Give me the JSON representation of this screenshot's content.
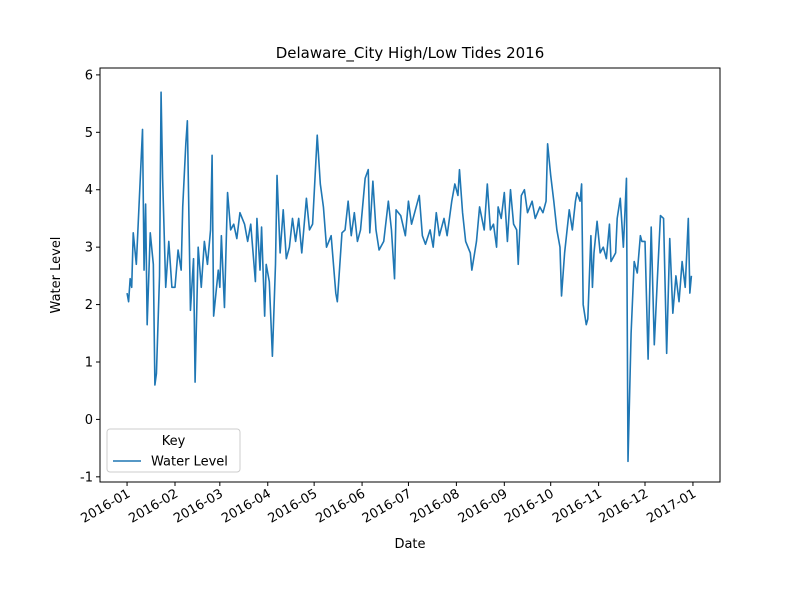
{
  "chart_data": {
    "type": "line",
    "title": "Delaware_City High/Low Tides 2016",
    "x_label": "Date",
    "y_label": "Water Level",
    "xlim": [
      -17.5,
      383.5
    ],
    "ylim": [
      -1.09,
      6.12
    ],
    "xticks": [
      {
        "value": 0,
        "label": "2016-01"
      },
      {
        "value": 31,
        "label": "2016-02"
      },
      {
        "value": 60,
        "label": "2016-03"
      },
      {
        "value": 91,
        "label": "2016-04"
      },
      {
        "value": 121,
        "label": "2016-05"
      },
      {
        "value": 152,
        "label": "2016-06"
      },
      {
        "value": 182,
        "label": "2016-07"
      },
      {
        "value": 213,
        "label": "2016-08"
      },
      {
        "value": 244,
        "label": "2016-09"
      },
      {
        "value": 274,
        "label": "2016-10"
      },
      {
        "value": 305,
        "label": "2016-11"
      },
      {
        "value": 335,
        "label": "2016-12"
      },
      {
        "value": 366,
        "label": "2017-01"
      }
    ],
    "yticks": [
      -1,
      0,
      1,
      2,
      3,
      4,
      5,
      6
    ],
    "grid": false,
    "legend_title": "Key",
    "legend_loc": "lower left",
    "x": [
      0,
      1,
      2,
      3,
      4,
      6,
      10,
      11,
      12,
      13,
      15,
      17,
      18,
      19,
      21,
      22,
      23,
      25,
      27,
      29,
      31,
      33,
      35,
      36,
      38,
      39,
      41,
      43,
      44,
      46,
      48,
      50,
      52,
      54,
      55,
      56,
      59,
      60,
      61,
      63,
      65,
      67,
      69,
      71,
      73,
      76,
      78,
      80,
      83,
      84,
      86,
      87,
      89,
      90,
      92,
      94,
      96,
      97,
      99,
      101,
      103,
      105,
      107,
      109,
      111,
      113,
      116,
      118,
      120,
      123,
      125,
      127,
      129,
      132,
      135,
      136,
      139,
      141,
      143,
      145,
      147,
      149,
      151,
      154,
      156,
      157,
      159,
      161,
      163,
      166,
      169,
      171,
      173,
      174,
      177,
      180,
      182,
      184,
      187,
      189,
      191,
      193,
      196,
      198,
      200,
      202,
      205,
      207,
      210,
      212,
      214,
      215,
      217,
      219,
      222,
      223,
      226,
      228,
      231,
      233,
      235,
      237,
      239,
      240,
      242,
      244,
      246,
      248,
      250,
      252,
      253,
      255,
      257,
      259,
      262,
      264,
      267,
      269,
      271,
      272,
      274,
      276,
      278,
      280,
      281,
      283,
      286,
      288,
      290,
      291,
      293,
      294,
      295,
      297,
      298,
      300,
      301,
      302,
      304,
      306,
      308,
      310,
      312,
      313,
      316,
      317,
      319,
      321,
      323,
      324,
      326,
      328,
      330,
      332,
      333,
      335,
      337,
      339,
      341,
      343,
      345,
      347,
      349,
      351,
      353,
      355,
      357,
      359,
      361,
      363,
      364,
      365
    ],
    "series": [
      {
        "name": "Water Level",
        "color": "#1f77b4",
        "values": [
          2.2,
          2.05,
          2.45,
          2.3,
          3.25,
          2.7,
          5.05,
          2.6,
          3.75,
          1.65,
          3.25,
          2.7,
          0.6,
          0.8,
          2.5,
          5.7,
          4.2,
          2.3,
          3.1,
          2.3,
          2.3,
          2.95,
          2.6,
          3.7,
          4.8,
          5.2,
          1.9,
          2.8,
          0.65,
          3.0,
          2.3,
          3.1,
          2.7,
          3.3,
          4.6,
          1.8,
          2.6,
          2.3,
          3.2,
          1.95,
          3.95,
          3.3,
          3.4,
          3.15,
          3.6,
          3.4,
          3.1,
          3.4,
          2.4,
          3.5,
          2.6,
          3.35,
          1.8,
          2.7,
          2.4,
          1.1,
          2.7,
          4.25,
          2.9,
          3.65,
          2.8,
          3.0,
          3.5,
          3.1,
          3.5,
          2.9,
          3.85,
          3.3,
          3.4,
          4.95,
          4.1,
          3.7,
          3.0,
          3.2,
          2.2,
          2.05,
          3.25,
          3.3,
          3.8,
          3.2,
          3.6,
          3.1,
          3.3,
          4.2,
          4.35,
          3.25,
          4.15,
          3.3,
          2.95,
          3.1,
          3.8,
          3.3,
          2.45,
          3.65,
          3.55,
          3.2,
          3.8,
          3.4,
          3.7,
          3.9,
          3.2,
          3.05,
          3.3,
          3.0,
          3.6,
          3.2,
          3.5,
          3.2,
          3.8,
          4.1,
          3.9,
          4.35,
          3.6,
          3.1,
          2.9,
          2.6,
          3.1,
          3.7,
          3.3,
          4.1,
          3.3,
          3.4,
          3.0,
          3.7,
          3.5,
          3.95,
          3.1,
          4.0,
          3.4,
          3.3,
          2.7,
          3.9,
          4.0,
          3.6,
          3.8,
          3.5,
          3.7,
          3.6,
          3.8,
          4.8,
          4.25,
          3.8,
          3.3,
          3.0,
          2.15,
          2.9,
          3.65,
          3.3,
          3.8,
          3.95,
          3.8,
          4.1,
          2.0,
          1.65,
          1.75,
          3.2,
          2.3,
          2.9,
          3.45,
          2.9,
          3.0,
          2.8,
          3.4,
          2.75,
          2.9,
          3.5,
          3.85,
          3.0,
          4.2,
          -0.73,
          1.5,
          2.75,
          2.55,
          3.2,
          3.1,
          3.1,
          1.05,
          3.35,
          1.3,
          2.45,
          3.55,
          3.5,
          1.15,
          3.15,
          1.85,
          2.5,
          2.05,
          2.75,
          2.3,
          3.5,
          2.2,
          2.5
        ]
      }
    ]
  }
}
